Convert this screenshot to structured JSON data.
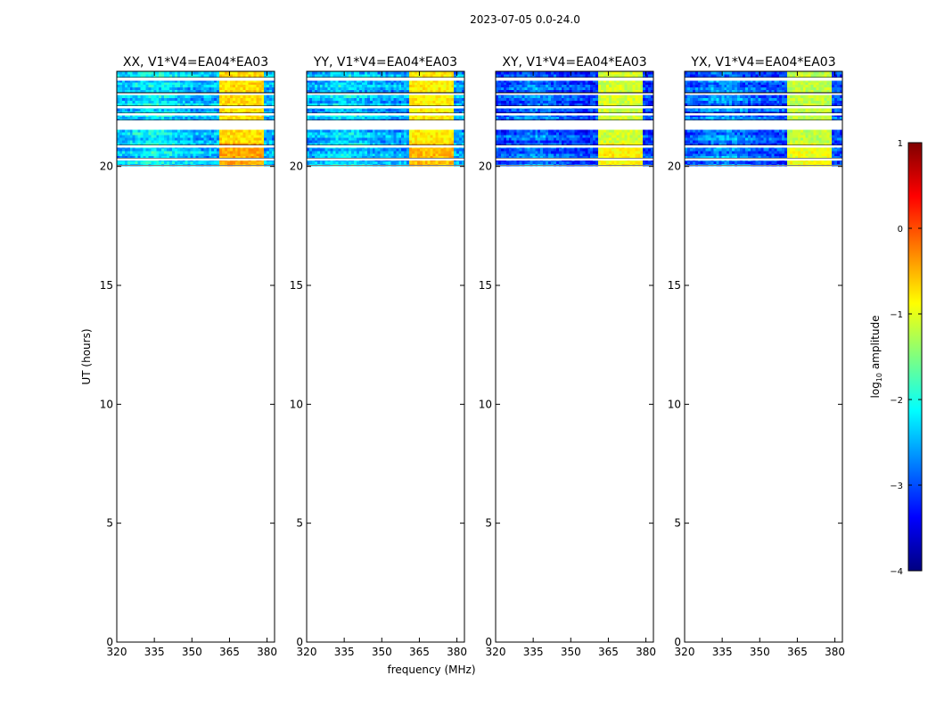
{
  "figure": {
    "suptitle": "2023-07-05 0.0-24.0",
    "ylabel": "UT (hours)",
    "xlabel": "frequency (MHz)",
    "colorbar_label_prefix": "log",
    "colorbar_label_sub": "10",
    "colorbar_label_suffix": " amplitude"
  },
  "colors": {
    "background": "#ffffff",
    "axis": "#000000"
  },
  "chart_data": {
    "type": "heatmap",
    "x_range": [
      320,
      383
    ],
    "y_range": [
      0,
      24
    ],
    "x_ticks": [
      320,
      335,
      350,
      365,
      380
    ],
    "y_ticks": [
      0,
      5,
      10,
      15,
      20
    ],
    "data_time_range": [
      20.0,
      24.0
    ],
    "panels": [
      {
        "title": "XX, V1*V4=EA04*EA03",
        "pol": "XX",
        "base_log": -2.5,
        "hot_log": -0.7
      },
      {
        "title": "YY, V1*V4=EA04*EA03",
        "pol": "YY",
        "base_log": -2.6,
        "hot_log": -0.8
      },
      {
        "title": "XY, V1*V4=EA04*EA03",
        "pol": "XY",
        "base_log": -3.1,
        "hot_log": -1.1
      },
      {
        "title": "YX, V1*V4=EA04*EA03",
        "pol": "YX",
        "base_log": -3.0,
        "hot_log": -1.2
      }
    ],
    "bright_freq_ranges_mhz": [
      [
        361,
        365
      ],
      [
        365.5,
        370
      ],
      [
        370.5,
        374.5
      ],
      [
        375,
        379
      ]
    ],
    "flagged_time_bands_hours": [
      [
        23.6,
        23.75
      ],
      [
        23.0,
        23.1
      ],
      [
        22.45,
        22.55
      ],
      [
        22.15,
        22.25
      ],
      [
        21.55,
        21.95
      ],
      [
        20.8,
        20.9
      ],
      [
        20.25,
        20.35
      ],
      [
        20.0,
        20.05
      ]
    ],
    "colorbar": {
      "label": "log10 amplitude",
      "min": -4,
      "max": 1,
      "ticks": [
        -4,
        -3,
        -2,
        -1,
        0,
        1
      ],
      "tick_labels": [
        "−4",
        "−3",
        "−2",
        "−1",
        "0",
        "1"
      ],
      "colormap": "jet"
    }
  }
}
